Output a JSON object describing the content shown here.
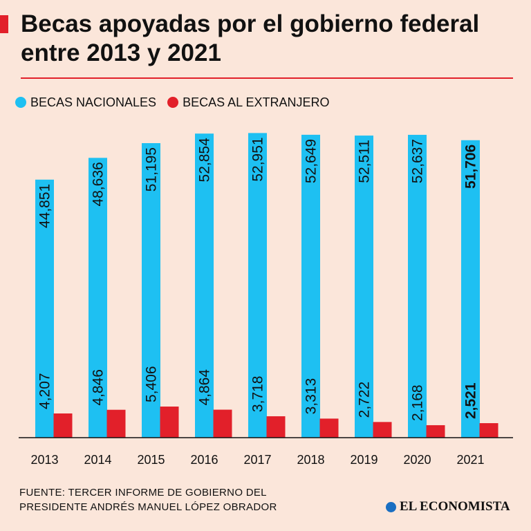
{
  "title": "Becas apoyadas por el gobierno federal entre 2013 y 2021",
  "source": "FUENTE: TERCER INFORME DE GOBIERNO DEL PRESIDENTE ANDRÉS MANUEL LÓPEZ OBRADOR",
  "brand": "EL ECONOMISTA",
  "brand_icon": "el-economista-logo-icon",
  "colors": {
    "background": "#fbe6da",
    "nacionales": "#1ec0f2",
    "extranjero": "#e2202a",
    "accent": "#e2202a"
  },
  "chart_data": {
    "type": "bar",
    "categories": [
      "2013",
      "2014",
      "2015",
      "2016",
      "2017",
      "2018",
      "2019",
      "2020",
      "2021"
    ],
    "series": [
      {
        "name": "BECAS NACIONALES",
        "values": [
          44851,
          48636,
          51195,
          52854,
          52951,
          52649,
          52511,
          52637,
          51706
        ],
        "labels": [
          "44,851",
          "48,636",
          "51,195",
          "52,854",
          "52,951",
          "52,649",
          "52,511",
          "52,637",
          "51,706"
        ],
        "color": "#1ec0f2"
      },
      {
        "name": "BECAS AL EXTRANJERO",
        "values": [
          4207,
          4846,
          5406,
          4864,
          3718,
          3313,
          2722,
          2168,
          2521
        ],
        "labels": [
          "4,207",
          "4,846",
          "5,406",
          "4,864",
          "3,718",
          "3,313",
          "2,722",
          "2,168",
          "2,521"
        ],
        "color": "#e2202a"
      }
    ],
    "highlight_category": "2021",
    "ylim": [
      0,
      53000
    ],
    "grid": false,
    "legend_position": "top-left"
  }
}
